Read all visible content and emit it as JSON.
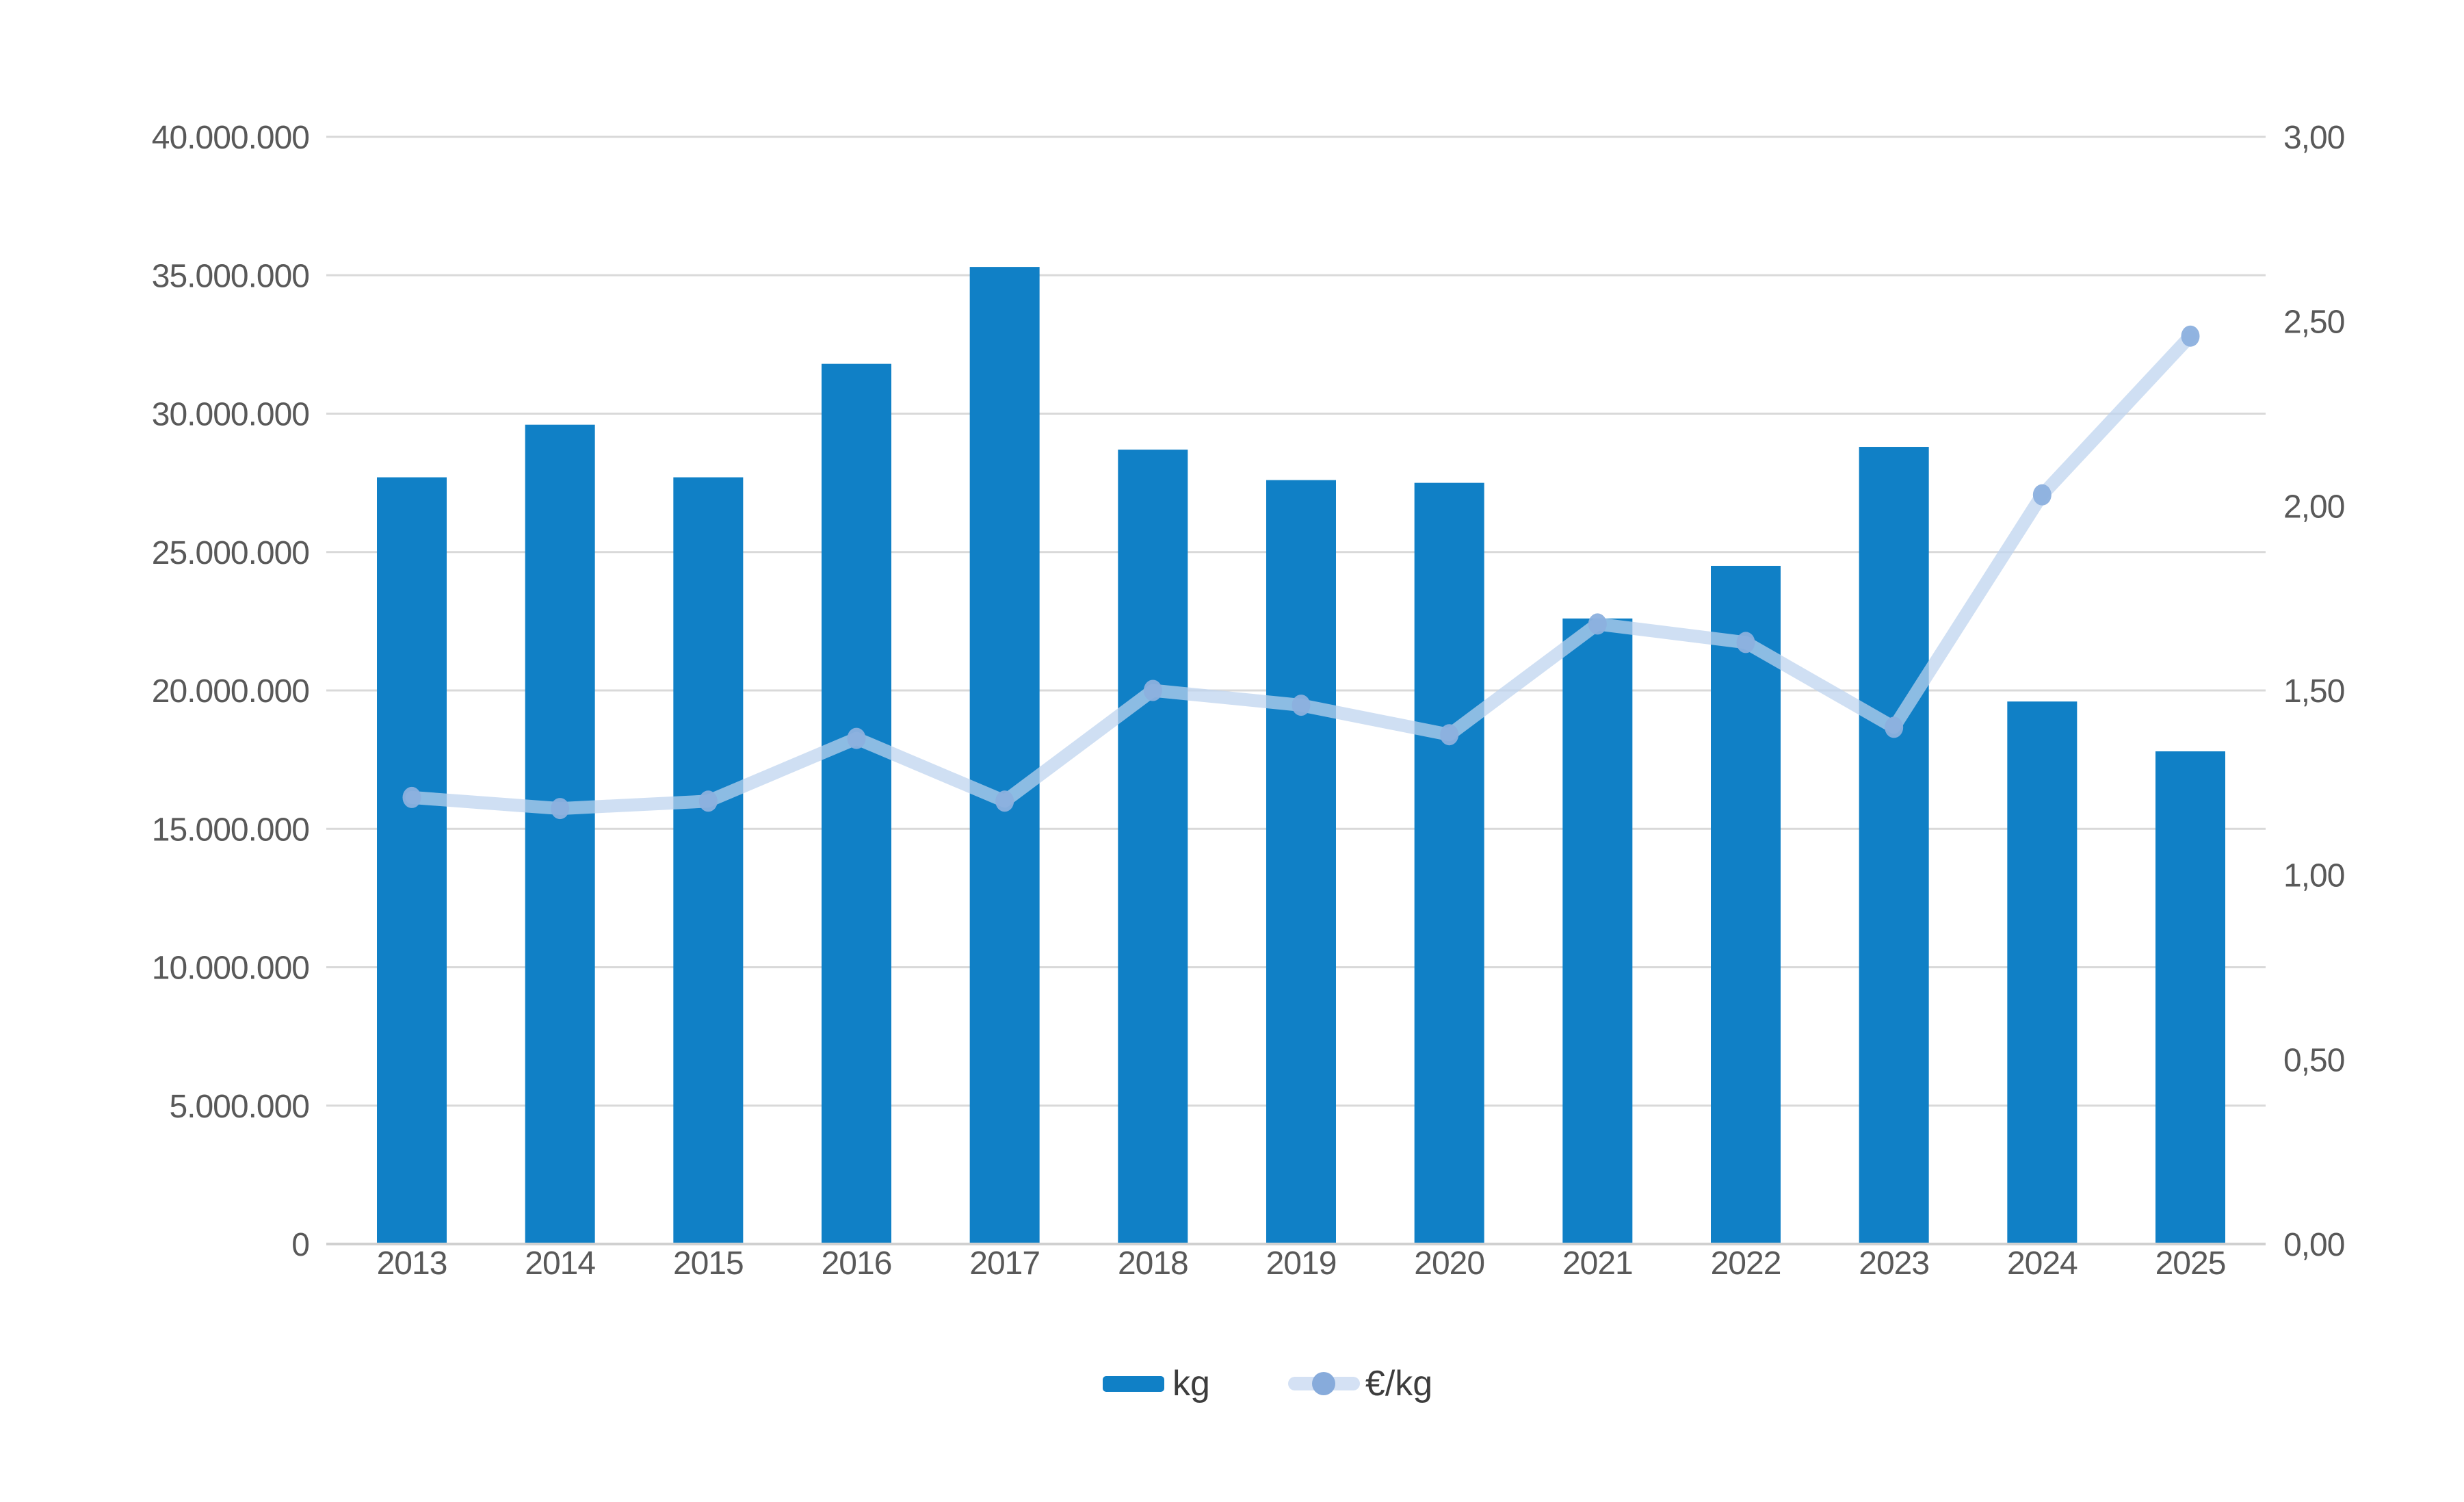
{
  "chart_data": {
    "type": "combo-bar-line",
    "categories": [
      "2013",
      "2014",
      "2015",
      "2016",
      "2017",
      "2018",
      "2019",
      "2020",
      "2021",
      "2022",
      "2023",
      "2024",
      "2025"
    ],
    "series": [
      {
        "name": "kg",
        "type": "bar",
        "axis": "left",
        "color": "#1080c6",
        "values": [
          27700000,
          29600000,
          27700000,
          31800000,
          35300000,
          28700000,
          27600000,
          27500000,
          22600000,
          24500000,
          28800000,
          19600000,
          17800000
        ]
      },
      {
        "name": "€/kg",
        "type": "line",
        "axis": "right",
        "color": "#bdd3ee",
        "dot_color": "#8cb0de",
        "values": [
          1.21,
          1.18,
          1.2,
          1.37,
          1.2,
          1.5,
          1.46,
          1.38,
          1.68,
          1.63,
          1.4,
          2.03,
          2.46
        ]
      }
    ],
    "left_axis": {
      "min": 0,
      "max": 40000000,
      "ticks": [
        {
          "value": 0,
          "label": "0"
        },
        {
          "value": 5000000,
          "label": "5.000.000"
        },
        {
          "value": 10000000,
          "label": "10.000.000"
        },
        {
          "value": 15000000,
          "label": "15.000.000"
        },
        {
          "value": 20000000,
          "label": "20.000.000"
        },
        {
          "value": 25000000,
          "label": "25.000.000"
        },
        {
          "value": 30000000,
          "label": "30.000.000"
        },
        {
          "value": 35000000,
          "label": "35.000.000"
        },
        {
          "value": 40000000,
          "label": "40.000.000"
        }
      ]
    },
    "right_axis": {
      "min": 0,
      "max": 3,
      "ticks": [
        {
          "value": 0,
          "label": "0,00"
        },
        {
          "value": 0.5,
          "label": "0,50"
        },
        {
          "value": 1,
          "label": "1,00"
        },
        {
          "value": 1.5,
          "label": "1,50"
        },
        {
          "value": 2,
          "label": "2,00"
        },
        {
          "value": 2.5,
          "label": "2,50"
        },
        {
          "value": 3,
          "label": "3,00"
        }
      ]
    },
    "grid": true,
    "legend_position": "bottom",
    "colors": {
      "gridline": "#d9d9d9",
      "axis_line": "#d0d0d0",
      "tick_text": "#595959",
      "legend_text": "#3d3d3d"
    }
  }
}
